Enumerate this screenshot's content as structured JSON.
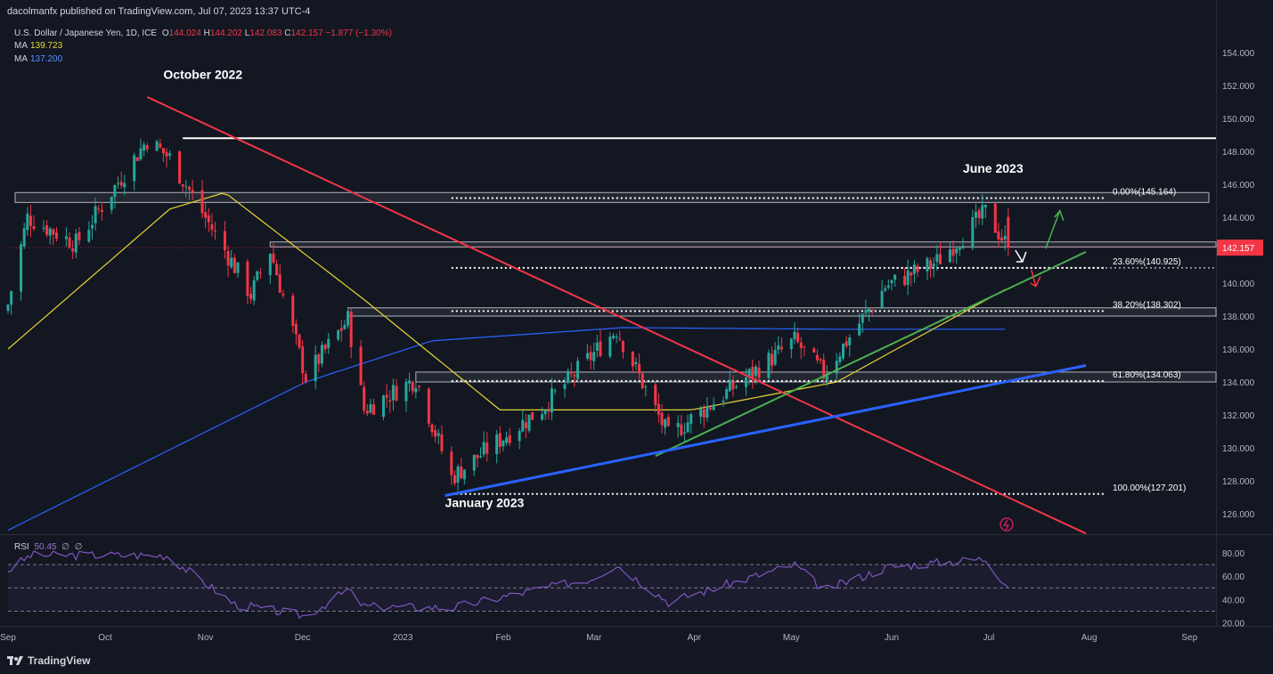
{
  "header": {
    "publisher": "dacolmanfx published on TradingView.com, Jul 07, 2023 13:37 UTC-4"
  },
  "legend": {
    "symbol": "U.S. Dollar / Japanese Yen, 1D, ICE",
    "open_label": "O",
    "open": "144.024",
    "high_label": "H",
    "high": "144.202",
    "low_label": "L",
    "low": "142.083",
    "close_label": "C",
    "close": "142.157",
    "change": "−1.877 (−1.30%)",
    "ma1_label": "MA",
    "ma1_value": "139.723",
    "ma2_label": "MA",
    "ma2_value": "137.200"
  },
  "rsi_legend": {
    "label": "RSI",
    "value": "50.45",
    "extra1": "∅",
    "extra2": "∅"
  },
  "brand": {
    "name": "TradingView"
  },
  "colors": {
    "background": "#131722",
    "up": "#26a69a",
    "down": "#f23645",
    "ma_fast": "#e5d636",
    "ma_slow": "#2962ff",
    "rsi": "#7e57c2",
    "trend_down": "#f23645",
    "trend_up_green": "#4caf50",
    "trend_up_blue": "#2962ff"
  },
  "chart_data": {
    "type": "candlestick",
    "symbol": "USDJPY",
    "timeframe": "1D",
    "ylim": [
      125,
      155
    ],
    "y_ticks": [
      "154.000",
      "152.000",
      "150.000",
      "148.000",
      "146.000",
      "144.000",
      "142.000",
      "140.000",
      "138.000",
      "136.000",
      "134.000",
      "132.000",
      "130.000",
      "128.000",
      "126.000"
    ],
    "x_ticks": [
      "Sep",
      "Oct",
      "Nov",
      "Dec",
      "2023",
      "Feb",
      "Mar",
      "Apr",
      "May",
      "Jun",
      "Jul",
      "Aug",
      "Sep"
    ],
    "last_price": "142.157",
    "annotations": [
      {
        "text": "October 2022"
      },
      {
        "text": "June 2023"
      },
      {
        "text": "January 2023"
      }
    ],
    "fibonacci": [
      {
        "label": "0.00%(145.164)",
        "price": 145.164
      },
      {
        "label": "23.60%(140.925)",
        "price": 140.925
      },
      {
        "label": "38.20%(138.302)",
        "price": 138.302
      },
      {
        "label": "61.80%(134.063)",
        "price": 134.063
      },
      {
        "label": "100.00%(127.201)",
        "price": 127.201
      }
    ],
    "horizontal_levels": [
      148.8
    ],
    "price_key_points": [
      {
        "date": "2022-09-01",
        "close": 138.7
      },
      {
        "date": "2022-09-07",
        "close": 144.0
      },
      {
        "date": "2022-09-22",
        "close": 142.4
      },
      {
        "date": "2022-10-14",
        "close": 148.7
      },
      {
        "date": "2022-10-21",
        "close": 147.6
      },
      {
        "date": "2022-11-10",
        "close": 141.0
      },
      {
        "date": "2022-11-15",
        "close": 139.3
      },
      {
        "date": "2022-11-21",
        "close": 142.0
      },
      {
        "date": "2022-12-02",
        "close": 134.3
      },
      {
        "date": "2022-12-15",
        "close": 137.8
      },
      {
        "date": "2022-12-20",
        "close": 132.3
      },
      {
        "date": "2023-01-05",
        "close": 134.2
      },
      {
        "date": "2023-01-16",
        "close": 128.2
      },
      {
        "date": "2023-01-27",
        "close": 129.9
      },
      {
        "date": "2023-02-13",
        "close": 132.4
      },
      {
        "date": "2023-03-08",
        "close": 137.2
      },
      {
        "date": "2023-03-24",
        "close": 130.7
      },
      {
        "date": "2023-04-20",
        "close": 134.7
      },
      {
        "date": "2023-05-02",
        "close": 136.5
      },
      {
        "date": "2023-05-11",
        "close": 134.5
      },
      {
        "date": "2023-05-30",
        "close": 139.8
      },
      {
        "date": "2023-06-15",
        "close": 141.3
      },
      {
        "date": "2023-06-30",
        "close": 144.3
      },
      {
        "date": "2023-07-07",
        "close": 142.16
      }
    ],
    "ma_fast_key_points": [
      {
        "date": "2022-09-01",
        "value": 136.0
      },
      {
        "date": "2022-10-21",
        "value": 144.5
      },
      {
        "date": "2022-11-07",
        "value": 145.5
      },
      {
        "date": "2022-12-20",
        "value": 139.0
      },
      {
        "date": "2023-01-31",
        "value": 132.3
      },
      {
        "date": "2023-03-31",
        "value": 132.3
      },
      {
        "date": "2023-05-15",
        "value": 134.0
      },
      {
        "date": "2023-07-07",
        "value": 139.723
      }
    ],
    "ma_slow_key_points": [
      {
        "date": "2022-09-01",
        "value": 125.0
      },
      {
        "date": "2022-12-02",
        "value": 134.0
      },
      {
        "date": "2023-01-10",
        "value": 136.5
      },
      {
        "date": "2023-03-10",
        "value": 137.3
      },
      {
        "date": "2023-05-15",
        "value": 137.2
      },
      {
        "date": "2023-07-07",
        "value": 137.2
      }
    ],
    "rsi": {
      "ylim": [
        20,
        90
      ],
      "y_ticks": [
        "80.00",
        "60.00",
        "40.00",
        "20.00"
      ],
      "levels": [
        70,
        50,
        30
      ],
      "last_value": 50.45,
      "key_points": [
        {
          "date": "2022-09-01",
          "value": 65
        },
        {
          "date": "2022-09-08",
          "value": 78
        },
        {
          "date": "2022-10-20",
          "value": 78
        },
        {
          "date": "2022-11-10",
          "value": 36
        },
        {
          "date": "2022-12-02",
          "value": 26
        },
        {
          "date": "2022-12-15",
          "value": 48
        },
        {
          "date": "2022-12-20",
          "value": 34
        },
        {
          "date": "2023-01-16",
          "value": 33
        },
        {
          "date": "2023-02-28",
          "value": 58
        },
        {
          "date": "2023-03-08",
          "value": 70
        },
        {
          "date": "2023-03-24",
          "value": 38
        },
        {
          "date": "2023-05-02",
          "value": 70
        },
        {
          "date": "2023-05-11",
          "value": 48
        },
        {
          "date": "2023-05-31",
          "value": 68
        },
        {
          "date": "2023-06-30",
          "value": 75
        },
        {
          "date": "2023-07-07",
          "value": 50.45
        }
      ]
    }
  }
}
